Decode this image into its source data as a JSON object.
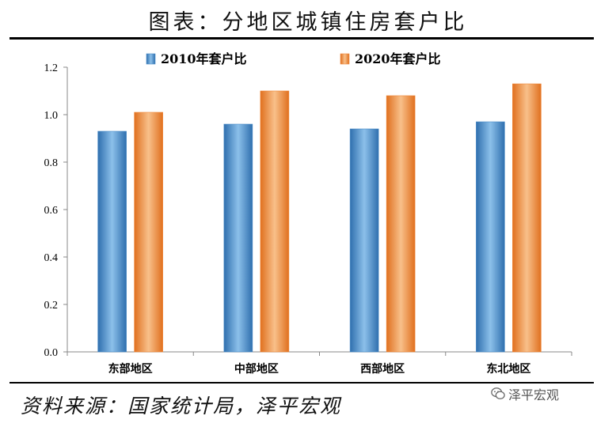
{
  "header": {
    "title": "图表：分地区城镇住房套户比"
  },
  "footer": {
    "source": "资料来源：国家统计局，泽平宏观"
  },
  "watermark": {
    "icon": "wechat-icon",
    "text": "泽平宏观"
  },
  "chart_data": {
    "type": "bar",
    "title": "",
    "xlabel": "",
    "ylabel": "",
    "categories": [
      "东部地区",
      "中部地区",
      "西部地区",
      "东北地区"
    ],
    "series": [
      {
        "name": "2010年套户比",
        "values": [
          0.93,
          0.96,
          0.94,
          0.97
        ],
        "color": "#4a8cc8"
      },
      {
        "name": "2020年套户比",
        "values": [
          1.01,
          1.1,
          1.08,
          1.13
        ],
        "color": "#f0883a"
      }
    ],
    "ylim": [
      0,
      1.2
    ],
    "yticks": [
      "0.0",
      "0.2",
      "0.4",
      "0.6",
      "0.8",
      "1.0",
      "1.2"
    ],
    "grid": false,
    "legend": "top-center"
  }
}
